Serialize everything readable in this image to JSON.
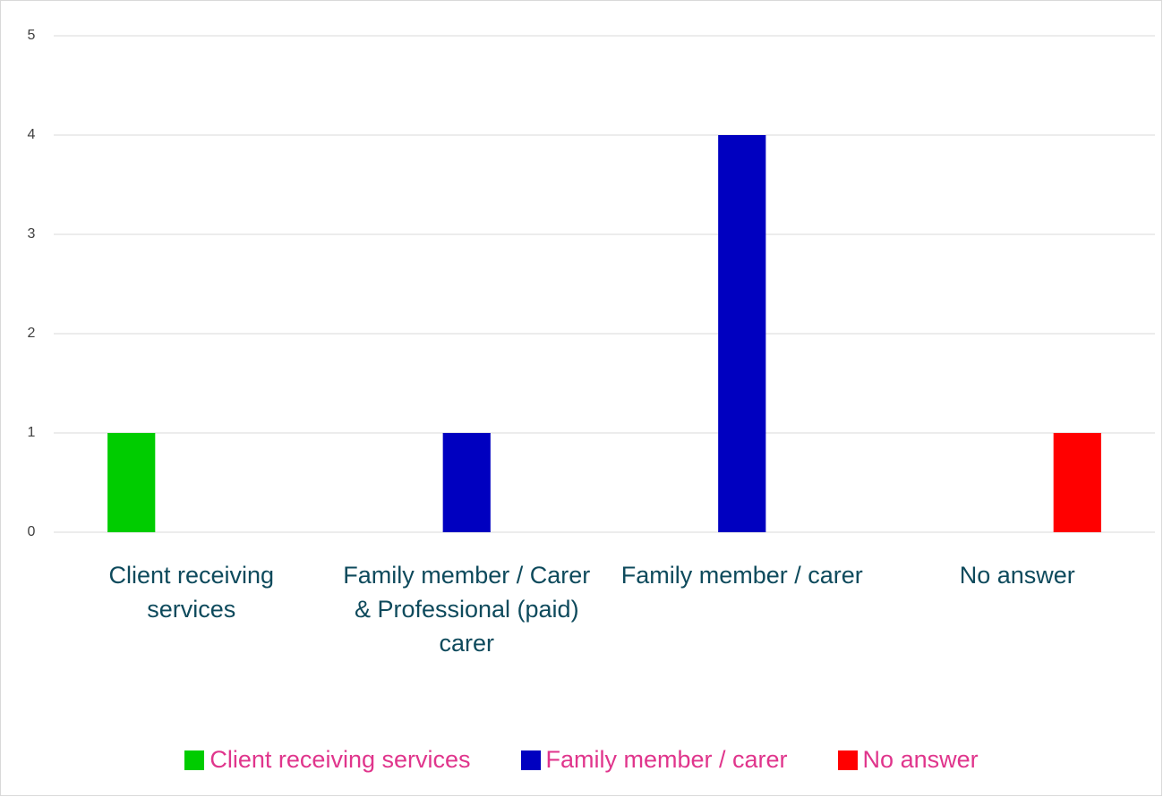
{
  "chart_data": {
    "type": "bar",
    "categories": [
      "Client receiving services",
      "Family member / Carer & Professional (paid) carer",
      "Family member / carer",
      "No answer"
    ],
    "series": [
      {
        "name": "Client receiving services",
        "color": "#00cc00",
        "values": [
          1,
          0,
          0,
          0
        ]
      },
      {
        "name": "Family member / carer",
        "color": "#0000c0",
        "values": [
          0,
          1,
          4,
          0
        ]
      },
      {
        "name": "No answer",
        "color": "#ff0000",
        "values": [
          0,
          0,
          0,
          1
        ]
      }
    ],
    "ylim": [
      0,
      5
    ],
    "yticks": [
      0,
      1,
      2,
      3,
      4,
      5
    ],
    "grid": true,
    "legend": "bottom"
  }
}
